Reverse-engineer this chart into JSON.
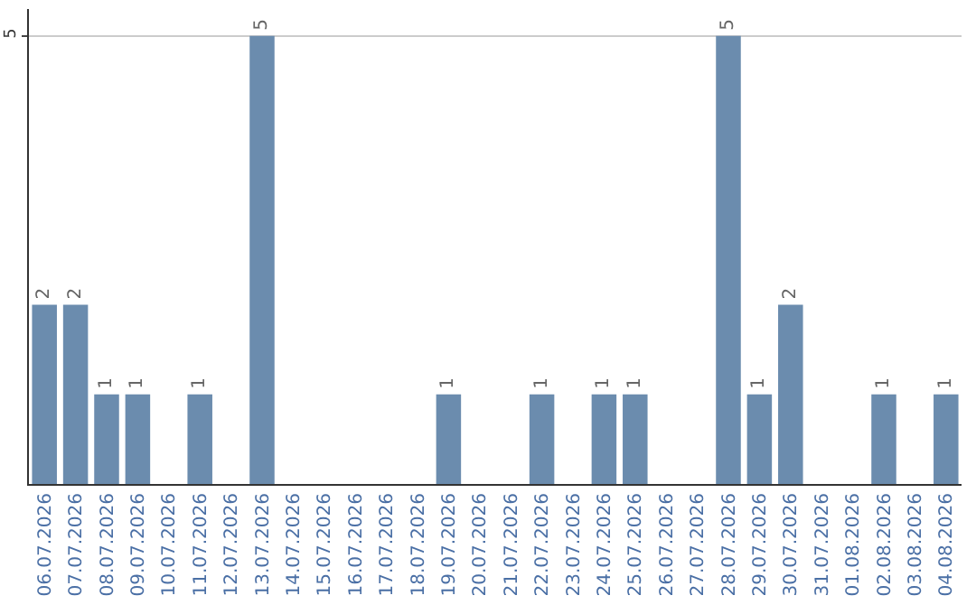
{
  "chart_data": {
    "type": "bar",
    "categories": [
      "06.07.2026",
      "07.07.2026",
      "08.07.2026",
      "09.07.2026",
      "10.07.2026",
      "11.07.2026",
      "12.07.2026",
      "13.07.2026",
      "14.07.2026",
      "15.07.2026",
      "16.07.2026",
      "17.07.2026",
      "18.07.2026",
      "19.07.2026",
      "20.07.2026",
      "21.07.2026",
      "22.07.2026",
      "23.07.2026",
      "24.07.2026",
      "25.07.2026",
      "26.07.2026",
      "27.07.2026",
      "28.07.2026",
      "29.07.2026",
      "30.07.2026",
      "31.07.2026",
      "01.08.2026",
      "02.08.2026",
      "03.08.2026",
      "04.08.2026"
    ],
    "values": [
      2,
      2,
      1,
      1,
      0,
      1,
      0,
      5,
      0,
      0,
      0,
      0,
      0,
      1,
      0,
      0,
      1,
      0,
      1,
      1,
      0,
      0,
      5,
      1,
      2,
      0,
      0,
      1,
      0,
      1
    ],
    "value_labels": [
      "2",
      "2",
      "1",
      "1",
      null,
      "1",
      null,
      "5",
      null,
      null,
      null,
      null,
      null,
      "1",
      null,
      null,
      "1",
      null,
      "1",
      "1",
      null,
      null,
      "5",
      "1",
      "2",
      null,
      null,
      "1",
      null,
      "1"
    ],
    "color": "#6b8cae",
    "ylim": [
      0,
      5.3
    ],
    "yticks": [
      5
    ],
    "grid": "y"
  }
}
